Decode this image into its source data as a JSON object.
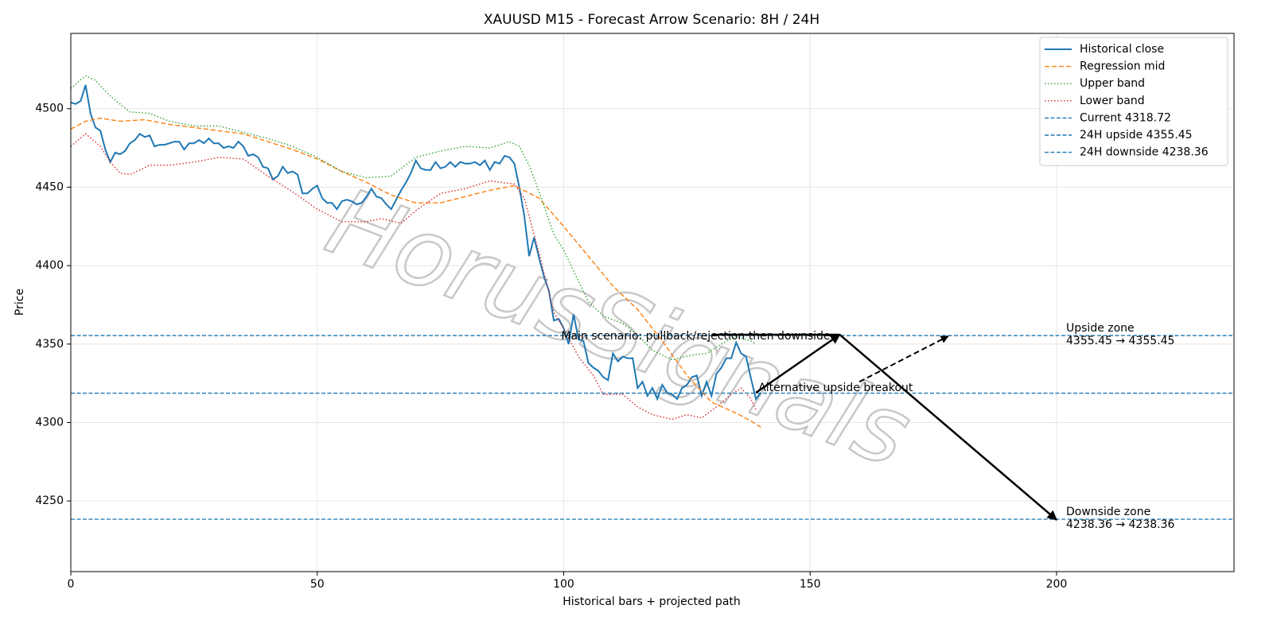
{
  "chart_data": {
    "type": "line",
    "title": "XAUUSD M15 - Forecast Arrow Scenario: 8H / 24H",
    "xlabel": "Historical bars + projected path",
    "ylabel": "Price",
    "xlim": [
      0,
      236
    ],
    "ylim": [
      4205,
      4548
    ],
    "xticks": [
      0,
      50,
      100,
      150,
      200
    ],
    "yticks": [
      4250,
      4300,
      4350,
      4400,
      4450,
      4500
    ],
    "grid": true,
    "legend": "upper right",
    "watermark": "HorusSignals",
    "series": [
      {
        "name": "Historical close",
        "color": "#1f77b4",
        "style": "solid",
        "x": [
          0,
          1,
          2,
          3,
          4,
          5,
          6,
          7,
          8,
          9,
          10,
          11,
          12,
          13,
          14,
          15,
          16,
          17,
          18,
          19,
          20,
          21,
          22,
          23,
          24,
          25,
          26,
          27,
          28,
          29,
          30,
          31,
          32,
          33,
          34,
          35,
          36,
          37,
          38,
          39,
          40,
          41,
          42,
          43,
          44,
          45,
          46,
          47,
          48,
          49,
          50,
          51,
          52,
          53,
          54,
          55,
          56,
          57,
          58,
          59,
          60,
          61,
          62,
          63,
          64,
          65,
          66,
          67,
          68,
          69,
          70,
          71,
          72,
          73,
          74,
          75,
          76,
          77,
          78,
          79,
          80,
          81,
          82,
          83,
          84,
          85,
          86,
          87,
          88,
          89,
          90,
          91,
          92,
          93,
          94,
          95,
          96,
          97,
          98,
          99,
          100,
          101,
          102,
          103,
          104,
          105,
          106,
          107,
          108,
          109,
          110,
          111,
          112,
          113,
          114,
          115,
          116,
          117,
          118,
          119,
          120,
          121,
          122,
          123,
          124,
          125,
          126,
          127,
          128,
          129,
          130,
          131,
          132,
          133,
          134,
          135,
          136,
          137,
          138,
          139,
          140
        ],
        "values": [
          4504,
          4503,
          4505,
          4515,
          4497,
          4488,
          4486,
          4474,
          4466,
          4472,
          4471,
          4473,
          4478,
          4480,
          4484,
          4482,
          4483,
          4476,
          4477,
          4477,
          4478,
          4479,
          4479,
          4474,
          4478,
          4478,
          4480,
          4478,
          4481,
          4478,
          4478,
          4475,
          4476,
          4475,
          4479,
          4476,
          4470,
          4471,
          4469,
          4463,
          4462,
          4455,
          4457,
          4463,
          4459,
          4460,
          4458,
          4446,
          4446,
          4449,
          4451,
          4443,
          4440,
          4440,
          4436,
          4441,
          4442,
          4441,
          4439,
          4440,
          4444,
          4449,
          4444,
          4443,
          4439,
          4436,
          4442,
          4448,
          4453,
          4459,
          4467,
          4462,
          4461,
          4461,
          4466,
          4462,
          4463,
          4466,
          4463,
          4466,
          4465,
          4465,
          4466,
          4464,
          4467,
          4461,
          4466,
          4465,
          4470,
          4469,
          4465,
          4450,
          4432,
          4406,
          4418,
          4405,
          4393,
          4384,
          4365,
          4366,
          4360,
          4350,
          4369,
          4353,
          4352,
          4338,
          4335,
          4333,
          4329,
          4327,
          4344,
          4339,
          4342,
          4341,
          4341,
          4322,
          4326,
          4317,
          4322,
          4315,
          4324,
          4319,
          4318,
          4315,
          4322,
          4324,
          4329,
          4330,
          4317,
          4326,
          4317,
          4331,
          4335,
          4341,
          4341,
          4351,
          4344,
          4342,
          4328,
          4315,
          4319
        ]
      },
      {
        "name": "Regression mid",
        "color": "#ff7f0e",
        "style": "dashed",
        "x": [
          0,
          3,
          6,
          10,
          15,
          20,
          25,
          30,
          35,
          40,
          45,
          50,
          55,
          60,
          65,
          70,
          75,
          80,
          85,
          90,
          95,
          100,
          105,
          110,
          115,
          120,
          125,
          130,
          135,
          138,
          140
        ],
        "values": [
          4487,
          4492,
          4494,
          4492,
          4493,
          4490,
          4488,
          4486,
          4484,
          4479,
          4474,
          4468,
          4460,
          4453,
          4445,
          4440,
          4440,
          4444,
          4448,
          4451,
          4443,
          4425,
          4406,
          4387,
          4372,
          4352,
          4330,
          4313,
          4306,
          4301,
          4297
        ]
      },
      {
        "name": "Upper band",
        "color": "#2ca02c",
        "style": "dotted",
        "x": [
          0,
          3,
          5,
          8,
          12,
          16,
          20,
          25,
          30,
          35,
          40,
          45,
          50,
          55,
          60,
          65,
          70,
          75,
          80,
          85,
          89,
          91,
          93,
          95,
          98,
          100,
          103,
          105,
          108,
          112,
          115,
          118,
          122,
          126,
          129,
          132,
          135,
          138,
          139
        ],
        "values": [
          4513,
          4521,
          4518,
          4508,
          4498,
          4497,
          4492,
          4489,
          4489,
          4485,
          4481,
          4476,
          4469,
          4460,
          4456,
          4457,
          4469,
          4473,
          4476,
          4475,
          4479,
          4476,
          4464,
          4447,
          4420,
          4410,
          4390,
          4377,
          4368,
          4363,
          4356,
          4346,
          4340,
          4343,
          4344,
          4350,
          4355,
          4352,
          4350
        ]
      },
      {
        "name": "Lower band",
        "color": "#d62728",
        "style": "dotted",
        "x": [
          0,
          3,
          6,
          8,
          10,
          12,
          16,
          20,
          25,
          30,
          35,
          40,
          45,
          50,
          55,
          60,
          63,
          67,
          70,
          75,
          80,
          85,
          90,
          92,
          95,
          98,
          100,
          103,
          106,
          108,
          112,
          115,
          118,
          122,
          125,
          128,
          131,
          134,
          136,
          138,
          139
        ],
        "values": [
          4476,
          4484,
          4476,
          4466,
          4459,
          4458,
          4464,
          4464,
          4466,
          4469,
          4468,
          4457,
          4447,
          4436,
          4428,
          4428,
          4430,
          4427,
          4435,
          4446,
          4449,
          4454,
          4452,
          4443,
          4408,
          4370,
          4360,
          4342,
          4330,
          4318,
          4318,
          4310,
          4305,
          4302,
          4305,
          4303,
          4310,
          4318,
          4322,
          4315,
          4308
        ]
      }
    ],
    "hlines": [
      {
        "name": "Current 4318.72",
        "color": "#1f77b4",
        "value": 4318.72
      },
      {
        "name": "24H upside 4355.45",
        "color": "#1f77b4",
        "value": 4355.45,
        "zone_text": [
          "Upside zone",
          "4355.45 → 4355.45"
        ]
      },
      {
        "name": "24H downside 4238.36",
        "color": "#1f77b4",
        "value": 4238.36,
        "zone_text": [
          "Downside zone",
          "4238.36 → 4238.36"
        ]
      }
    ],
    "arrows": [
      {
        "x": [
          130,
          156
        ],
        "y": [
          4356,
          4356
        ],
        "style": "solid",
        "head": false
      },
      {
        "x": [
          139,
          156
        ],
        "y": [
          4319,
          4356
        ],
        "style": "solid",
        "head": true
      },
      {
        "x": [
          156,
          200
        ],
        "y": [
          4356,
          4238
        ],
        "style": "solid",
        "head": true
      },
      {
        "x": [
          160,
          178
        ],
        "y": [
          4326,
          4355
        ],
        "style": "dashed",
        "head": true
      }
    ],
    "annotations": [
      {
        "text": "Main scenario: pullback/rejection then downside",
        "x": 99.5,
        "y": 4353
      },
      {
        "text": "Alternative upside breakout",
        "x": 139.5,
        "y": 4320
      }
    ]
  }
}
